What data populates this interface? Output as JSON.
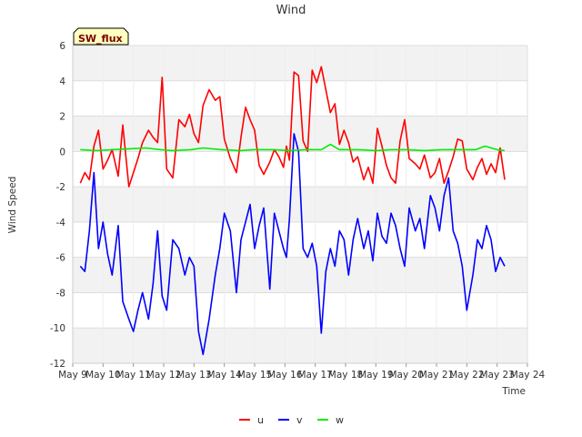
{
  "chart_data": {
    "type": "line",
    "title": "Wind",
    "badge": "SW_flux",
    "xlabel": "Time",
    "ylabel": "Wind Speed",
    "xlim": [
      9,
      24
    ],
    "ylim": [
      -12,
      6
    ],
    "x_ticks": [
      9,
      10,
      11,
      12,
      13,
      14,
      15,
      16,
      17,
      18,
      19,
      20,
      21,
      22,
      23,
      24
    ],
    "x_tick_labels": [
      "May 9",
      "May 10",
      "May 11",
      "May 12",
      "May 13",
      "May 14",
      "May 15",
      "May 16",
      "May 17",
      "May 18",
      "May 19",
      "May 20",
      "May 21",
      "May 22",
      "May 23",
      "May 24"
    ],
    "y_ticks": [
      -12,
      -10,
      -8,
      -6,
      -4,
      -2,
      0,
      2,
      4,
      6
    ],
    "y_tick_labels": [
      "-12",
      "-10",
      "-8",
      "-6",
      "-4",
      "-2",
      "0",
      "2",
      "4",
      "6"
    ],
    "grid": true,
    "legend_position": "bottom-center",
    "series": [
      {
        "name": "u",
        "color": "#ff0000",
        "x": [
          9.25,
          9.4,
          9.55,
          9.7,
          9.85,
          10.0,
          10.15,
          10.3,
          10.5,
          10.65,
          10.85,
          11.0,
          11.15,
          11.3,
          11.5,
          11.65,
          11.8,
          11.95,
          12.1,
          12.3,
          12.5,
          12.7,
          12.85,
          13.0,
          13.15,
          13.3,
          13.5,
          13.7,
          13.85,
          14.0,
          14.2,
          14.4,
          14.55,
          14.7,
          14.85,
          15.0,
          15.15,
          15.3,
          15.5,
          15.65,
          15.8,
          15.95,
          16.05,
          16.15,
          16.3,
          16.45,
          16.6,
          16.75,
          16.9,
          17.05,
          17.2,
          17.35,
          17.5,
          17.65,
          17.8,
          17.95,
          18.1,
          18.25,
          18.4,
          18.6,
          18.75,
          18.9,
          19.05,
          19.2,
          19.35,
          19.5,
          19.65,
          19.8,
          19.95,
          20.1,
          20.3,
          20.45,
          20.6,
          20.8,
          20.95,
          21.1,
          21.25,
          21.4,
          21.55,
          21.7,
          21.85,
          22.0,
          22.2,
          22.35,
          22.5,
          22.65,
          22.8,
          22.95,
          23.1,
          23.25
        ],
        "values": [
          -1.8,
          -1.2,
          -1.6,
          0.3,
          1.2,
          -1.0,
          -0.5,
          0.1,
          -1.4,
          1.5,
          -2.0,
          -1.2,
          -0.4,
          0.5,
          1.2,
          0.8,
          0.5,
          4.2,
          -1.0,
          -1.5,
          1.8,
          1.4,
          2.1,
          1.0,
          0.5,
          2.6,
          3.5,
          2.9,
          3.1,
          0.7,
          -0.4,
          -1.2,
          0.8,
          2.5,
          1.8,
          1.2,
          -0.8,
          -1.3,
          -0.6,
          0.1,
          -0.3,
          -0.9,
          0.3,
          -0.5,
          4.5,
          4.3,
          0.6,
          0.0,
          4.6,
          3.9,
          4.8,
          3.5,
          2.2,
          2.7,
          0.4,
          1.2,
          0.5,
          -0.6,
          -0.3,
          -1.6,
          -0.9,
          -1.8,
          1.3,
          0.3,
          -0.8,
          -1.5,
          -1.8,
          0.6,
          1.8,
          -0.4,
          -0.7,
          -1.0,
          -0.2,
          -1.5,
          -1.2,
          -0.4,
          -1.8,
          -1.1,
          -0.3,
          0.7,
          0.6,
          -1.0,
          -1.6,
          -0.9,
          -0.4,
          -1.3,
          -0.7,
          -1.2,
          0.2,
          -1.6
        ]
      },
      {
        "name": "v",
        "color": "#0000ff",
        "x": [
          9.25,
          9.4,
          9.55,
          9.7,
          9.85,
          10.0,
          10.15,
          10.3,
          10.5,
          10.65,
          10.85,
          11.0,
          11.15,
          11.3,
          11.5,
          11.65,
          11.8,
          11.95,
          12.1,
          12.3,
          12.5,
          12.7,
          12.85,
          13.0,
          13.15,
          13.3,
          13.5,
          13.7,
          13.85,
          14.0,
          14.2,
          14.4,
          14.55,
          14.7,
          14.85,
          15.0,
          15.15,
          15.3,
          15.5,
          15.65,
          15.8,
          15.95,
          16.05,
          16.15,
          16.3,
          16.45,
          16.6,
          16.75,
          16.9,
          17.05,
          17.2,
          17.35,
          17.5,
          17.65,
          17.8,
          17.95,
          18.1,
          18.25,
          18.4,
          18.6,
          18.75,
          18.9,
          19.05,
          19.2,
          19.35,
          19.5,
          19.65,
          19.8,
          19.95,
          20.1,
          20.3,
          20.45,
          20.6,
          20.8,
          20.95,
          21.1,
          21.25,
          21.4,
          21.55,
          21.7,
          21.85,
          22.0,
          22.2,
          22.35,
          22.5,
          22.65,
          22.8,
          22.95,
          23.1,
          23.25
        ],
        "values": [
          -6.5,
          -6.8,
          -4.5,
          -1.2,
          -5.5,
          -4.0,
          -5.8,
          -7.0,
          -4.2,
          -8.5,
          -9.5,
          -10.2,
          -9.0,
          -8.0,
          -9.5,
          -7.5,
          -4.5,
          -8.2,
          -9.0,
          -5.0,
          -5.5,
          -7.0,
          -6.0,
          -6.5,
          -10.2,
          -11.5,
          -9.5,
          -7.0,
          -5.5,
          -3.5,
          -4.5,
          -8.0,
          -5.0,
          -4.0,
          -3.0,
          -5.5,
          -4.2,
          -3.2,
          -7.8,
          -3.5,
          -4.5,
          -5.5,
          -6.0,
          -3.8,
          1.0,
          0.0,
          -5.5,
          -6.0,
          -5.2,
          -6.5,
          -10.3,
          -6.8,
          -5.5,
          -6.5,
          -4.5,
          -5.0,
          -7.0,
          -5.0,
          -3.8,
          -5.5,
          -4.5,
          -6.2,
          -3.5,
          -4.8,
          -5.2,
          -3.5,
          -4.2,
          -5.5,
          -6.5,
          -3.2,
          -4.5,
          -3.8,
          -5.5,
          -2.5,
          -3.2,
          -4.5,
          -2.5,
          -1.5,
          -4.5,
          -5.2,
          -6.5,
          -9.0,
          -7.0,
          -5.0,
          -5.5,
          -4.2,
          -5.0,
          -6.8,
          -6.0,
          -6.5
        ]
      },
      {
        "name": "w",
        "color": "#00ee00",
        "x": [
          9.25,
          9.8,
          10.3,
          10.9,
          11.4,
          11.9,
          12.3,
          12.9,
          13.3,
          13.9,
          14.5,
          15.0,
          15.6,
          16.2,
          16.7,
          17.2,
          17.5,
          17.8,
          18.4,
          19.0,
          19.5,
          20.0,
          20.6,
          21.2,
          21.8,
          22.3,
          22.6,
          23.0,
          23.25
        ],
        "values": [
          0.1,
          0.05,
          0.1,
          0.15,
          0.2,
          0.1,
          0.05,
          0.1,
          0.2,
          0.1,
          0.05,
          0.1,
          0.1,
          0.05,
          0.1,
          0.1,
          0.4,
          0.1,
          0.1,
          0.05,
          0.1,
          0.1,
          0.05,
          0.1,
          0.1,
          0.1,
          0.3,
          0.1,
          0.05
        ]
      }
    ]
  }
}
